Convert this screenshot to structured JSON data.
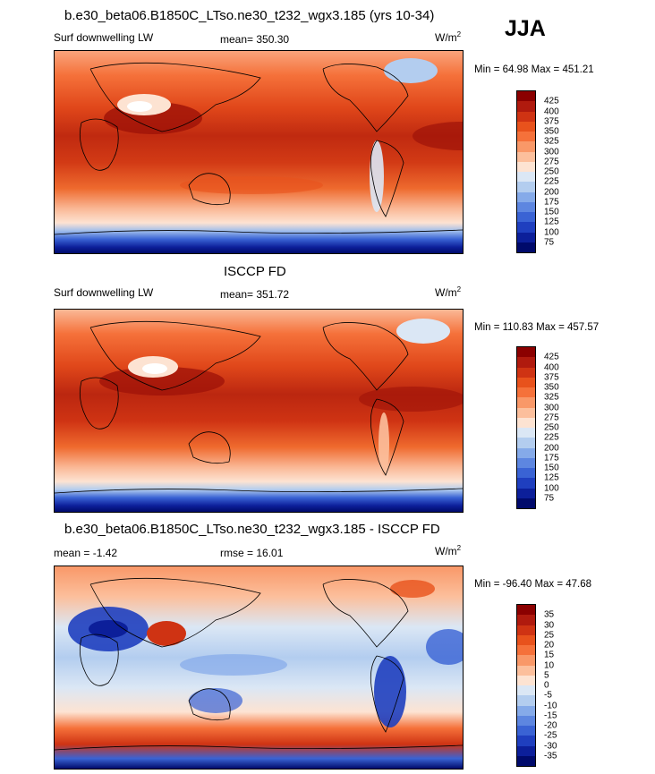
{
  "season": "JJA",
  "panels": [
    {
      "title": "b.e30_beta06.B1850C_LTso.ne30_t232_wgx3.185 (yrs 10-34)",
      "left_label": "Surf downwelling LW",
      "center_label": "mean= 350.30",
      "units": "W/m",
      "units_sup": "2",
      "minmax": "Min =  64.98 Max = 451.21",
      "colorbar": {
        "labels": [
          "425",
          "400",
          "375",
          "350",
          "325",
          "300",
          "275",
          "250",
          "225",
          "200",
          "175",
          "150",
          "125",
          "100",
          "75"
        ],
        "colors": [
          "#8b0000",
          "#b01a0e",
          "#cf3313",
          "#e8521c",
          "#f5713a",
          "#f99868",
          "#fcbf9c",
          "#fde3d2",
          "#dbe7f5",
          "#b3cdef",
          "#85aae9",
          "#5d86e0",
          "#3a63d4",
          "#1f3fbf",
          "#0c1f9a",
          "#000a6b"
        ]
      }
    },
    {
      "title": "ISCCP FD",
      "left_label": "Surf downwelling LW",
      "center_label": "mean= 351.72",
      "units": "W/m",
      "units_sup": "2",
      "minmax": "Min = 110.83 Max = 457.57",
      "colorbar": {
        "labels": [
          "425",
          "400",
          "375",
          "350",
          "325",
          "300",
          "275",
          "250",
          "225",
          "200",
          "175",
          "150",
          "125",
          "100",
          "75"
        ],
        "colors": [
          "#8b0000",
          "#b01a0e",
          "#cf3313",
          "#e8521c",
          "#f5713a",
          "#f99868",
          "#fcbf9c",
          "#fde3d2",
          "#dbe7f5",
          "#b3cdef",
          "#85aae9",
          "#5d86e0",
          "#3a63d4",
          "#1f3fbf",
          "#0c1f9a",
          "#000a6b"
        ]
      }
    },
    {
      "title": "b.e30_beta06.B1850C_LTso.ne30_t232_wgx3.185 - ISCCP FD",
      "left_label": "mean =  -1.42",
      "center_label": "rmse =  16.01",
      "units": "W/m",
      "units_sup": "2",
      "minmax": "Min = -96.40 Max =  47.68",
      "colorbar": {
        "labels": [
          "35",
          "30",
          "25",
          "20",
          "15",
          "10",
          "5",
          "0",
          "-5",
          "-10",
          "-15",
          "-20",
          "-25",
          "-30",
          "-35"
        ],
        "colors": [
          "#8b0000",
          "#b01a0e",
          "#cf3313",
          "#e8521c",
          "#f5713a",
          "#f99868",
          "#fcbf9c",
          "#fde3d2",
          "#dbe7f5",
          "#b3cdef",
          "#85aae9",
          "#5d86e0",
          "#3a63d4",
          "#1f3fbf",
          "#0c1f9a",
          "#000a6b"
        ]
      }
    }
  ]
}
